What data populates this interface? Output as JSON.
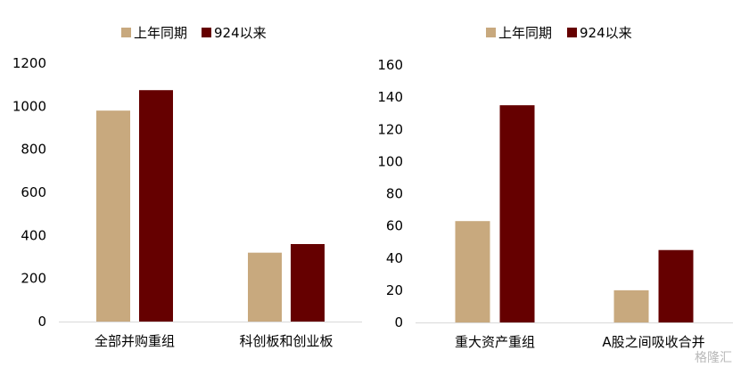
{
  "colors": {
    "prior": "#C8A97E",
    "recent": "#650000",
    "axis": "#D9D9D9",
    "text": "#000000"
  },
  "watermark": "格隆汇",
  "chart_data": [
    {
      "type": "bar",
      "categories": [
        "全部并购重组",
        "科创板和创业板"
      ],
      "series": [
        {
          "name": "上年同期",
          "values": [
            980,
            320
          ]
        },
        {
          "name": "924以来",
          "values": [
            1075,
            360
          ]
        }
      ],
      "yticks": [
        0,
        200,
        400,
        600,
        800,
        1000,
        1200
      ],
      "ylim": [
        0,
        1200
      ],
      "legend": "top"
    },
    {
      "type": "bar",
      "categories": [
        "重大资产重组",
        "A股之间吸收合并"
      ],
      "series": [
        {
          "name": "上年同期",
          "values": [
            63,
            20
          ]
        },
        {
          "name": "924以来",
          "values": [
            135,
            45
          ]
        }
      ],
      "yticks": [
        0,
        20,
        40,
        60,
        80,
        100,
        120,
        140,
        160
      ],
      "ylim": [
        0,
        160
      ],
      "legend": "top"
    }
  ]
}
